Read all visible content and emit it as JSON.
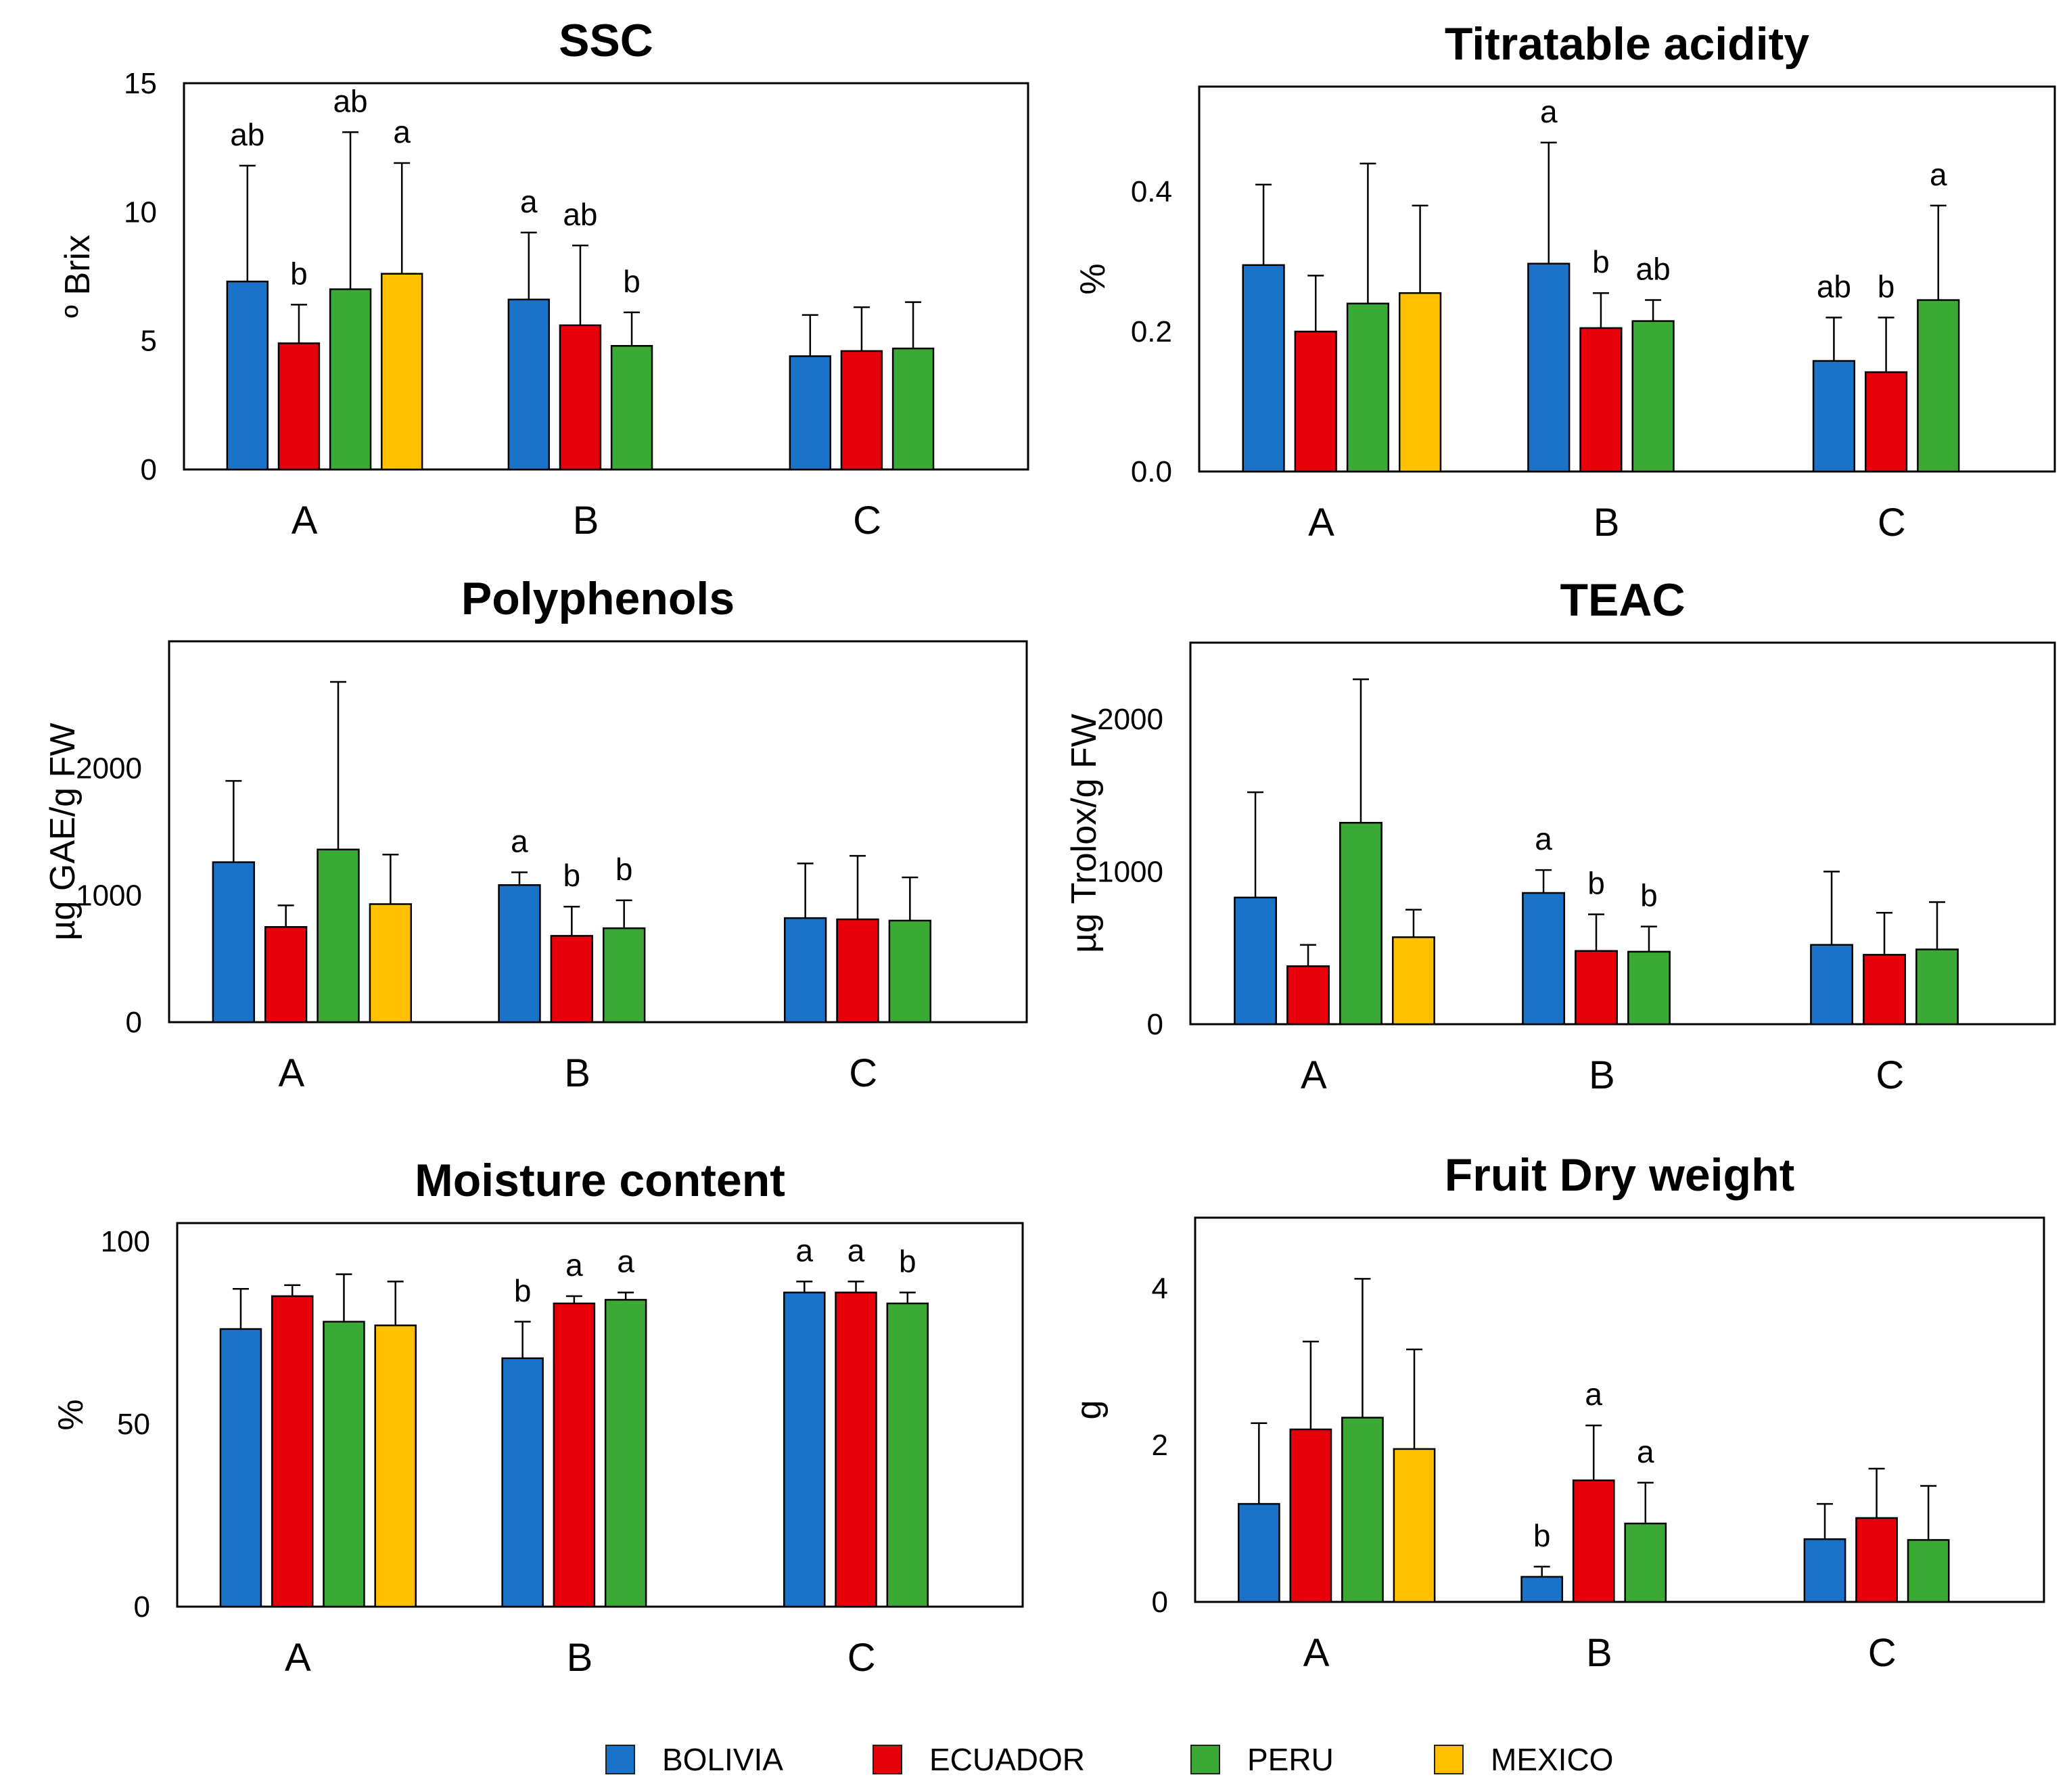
{
  "colors": {
    "BOLIVIA": "#1a73c9",
    "ECUADOR": "#e8000b",
    "PERU": "#3aaa35",
    "MEXICO": "#ffc000"
  },
  "legend": {
    "items": [
      {
        "label": "BOLIVIA",
        "key": "BOLIVIA"
      },
      {
        "label": "ECUADOR",
        "key": "ECUADOR"
      },
      {
        "label": "PERU",
        "key": "PERU"
      },
      {
        "label": "MEXICO",
        "key": "MEXICO"
      }
    ]
  },
  "chart_data": [
    {
      "type": "bar",
      "title": "SSC",
      "ylabel": "º Brix",
      "xlabel": "",
      "ylim": [
        0,
        15
      ],
      "yticks": [
        "0",
        "5",
        "10",
        "15"
      ],
      "ytick_values": [
        0,
        5,
        10,
        15
      ],
      "categories": [
        "A",
        "B",
        "C"
      ],
      "groups": [
        {
          "category": "A",
          "bars": [
            {
              "series": "BOLIVIA",
              "value": 7.3,
              "error": 11.8,
              "label": "ab"
            },
            {
              "series": "ECUADOR",
              "value": 4.9,
              "error": 6.4,
              "label": "b"
            },
            {
              "series": "PERU",
              "value": 7.0,
              "error": 13.1,
              "label": "ab"
            },
            {
              "series": "MEXICO",
              "value": 7.6,
              "error": 11.9,
              "label": "a"
            }
          ]
        },
        {
          "category": "B",
          "bars": [
            {
              "series": "BOLIVIA",
              "value": 6.6,
              "error": 9.2,
              "label": "a"
            },
            {
              "series": "ECUADOR",
              "value": 5.6,
              "error": 8.7,
              "label": "ab"
            },
            {
              "series": "PERU",
              "value": 4.8,
              "error": 6.1,
              "label": "b"
            }
          ]
        },
        {
          "category": "C",
          "bars": [
            {
              "series": "BOLIVIA",
              "value": 4.4,
              "error": 6.0,
              "label": ""
            },
            {
              "series": "ECUADOR",
              "value": 4.6,
              "error": 6.3,
              "label": ""
            },
            {
              "series": "PERU",
              "value": 4.7,
              "error": 6.5,
              "label": ""
            }
          ]
        }
      ]
    },
    {
      "type": "bar",
      "title": "Titratable acidity",
      "ylabel": "%",
      "xlabel": "",
      "ylim": [
        0,
        0.55
      ],
      "yticks": [
        "0.0",
        "0.2",
        "0.4"
      ],
      "ytick_values": [
        0,
        0.2,
        0.4
      ],
      "categories": [
        "A",
        "B",
        "C"
      ],
      "groups": [
        {
          "category": "A",
          "bars": [
            {
              "series": "BOLIVIA",
              "value": 0.295,
              "error": 0.41,
              "label": ""
            },
            {
              "series": "ECUADOR",
              "value": 0.2,
              "error": 0.28,
              "label": ""
            },
            {
              "series": "PERU",
              "value": 0.24,
              "error": 0.44,
              "label": ""
            },
            {
              "series": "MEXICO",
              "value": 0.255,
              "error": 0.38,
              "label": ""
            }
          ]
        },
        {
          "category": "B",
          "bars": [
            {
              "series": "BOLIVIA",
              "value": 0.297,
              "error": 0.47,
              "label": "a"
            },
            {
              "series": "ECUADOR",
              "value": 0.205,
              "error": 0.255,
              "label": "b"
            },
            {
              "series": "PERU",
              "value": 0.215,
              "error": 0.245,
              "label": "ab"
            }
          ]
        },
        {
          "category": "C",
          "bars": [
            {
              "series": "BOLIVIA",
              "value": 0.158,
              "error": 0.22,
              "label": "ab"
            },
            {
              "series": "ECUADOR",
              "value": 0.142,
              "error": 0.22,
              "label": "b"
            },
            {
              "series": "PERU",
              "value": 0.245,
              "error": 0.38,
              "label": "a"
            }
          ]
        }
      ]
    },
    {
      "type": "bar",
      "title": "Polyphenols",
      "ylabel": "µg GAE/g FW",
      "xlabel": "",
      "ylim": [
        0,
        3000
      ],
      "yticks": [
        "0",
        "1000",
        "2000"
      ],
      "ytick_values": [
        0,
        1000,
        2000
      ],
      "categories": [
        "A",
        "B",
        "C"
      ],
      "groups": [
        {
          "category": "A",
          "bars": [
            {
              "series": "BOLIVIA",
              "value": 1260,
              "error": 1900,
              "label": ""
            },
            {
              "series": "ECUADOR",
              "value": 750,
              "error": 920,
              "label": ""
            },
            {
              "series": "PERU",
              "value": 1360,
              "error": 2680,
              "label": ""
            },
            {
              "series": "MEXICO",
              "value": 930,
              "error": 1320,
              "label": ""
            }
          ]
        },
        {
          "category": "B",
          "bars": [
            {
              "series": "BOLIVIA",
              "value": 1080,
              "error": 1180,
              "label": "a"
            },
            {
              "series": "ECUADOR",
              "value": 680,
              "error": 910,
              "label": "b"
            },
            {
              "series": "PERU",
              "value": 740,
              "error": 960,
              "label": "b"
            }
          ]
        },
        {
          "category": "C",
          "bars": [
            {
              "series": "BOLIVIA",
              "value": 820,
              "error": 1250,
              "label": ""
            },
            {
              "series": "ECUADOR",
              "value": 810,
              "error": 1310,
              "label": ""
            },
            {
              "series": "PERU",
              "value": 800,
              "error": 1140,
              "label": ""
            }
          ]
        }
      ]
    },
    {
      "type": "bar",
      "title": "TEAC",
      "ylabel": "µg Trolox/g FW",
      "xlabel": "",
      "ylim": [
        0,
        2500
      ],
      "yticks": [
        "0",
        "1000",
        "2000"
      ],
      "ytick_values": [
        0,
        1000,
        2000
      ],
      "categories": [
        "A",
        "B",
        "C"
      ],
      "groups": [
        {
          "category": "A",
          "bars": [
            {
              "series": "BOLIVIA",
              "value": 830,
              "error": 1520,
              "label": ""
            },
            {
              "series": "ECUADOR",
              "value": 380,
              "error": 520,
              "label": ""
            },
            {
              "series": "PERU",
              "value": 1320,
              "error": 2260,
              "label": ""
            },
            {
              "series": "MEXICO",
              "value": 570,
              "error": 750,
              "label": ""
            }
          ]
        },
        {
          "category": "B",
          "bars": [
            {
              "series": "BOLIVIA",
              "value": 860,
              "error": 1010,
              "label": "a"
            },
            {
              "series": "ECUADOR",
              "value": 480,
              "error": 720,
              "label": "b"
            },
            {
              "series": "PERU",
              "value": 475,
              "error": 640,
              "label": "b"
            }
          ]
        },
        {
          "category": "C",
          "bars": [
            {
              "series": "BOLIVIA",
              "value": 520,
              "error": 1000,
              "label": ""
            },
            {
              "series": "ECUADOR",
              "value": 455,
              "error": 730,
              "label": ""
            },
            {
              "series": "PERU",
              "value": 490,
              "error": 800,
              "label": ""
            }
          ]
        }
      ]
    },
    {
      "type": "bar",
      "title": "Moisture content",
      "ylabel": "%",
      "xlabel": "",
      "ylim": [
        0,
        105
      ],
      "yticks": [
        "0",
        "50",
        "100"
      ],
      "ytick_values": [
        0,
        50,
        100
      ],
      "categories": [
        "A",
        "B",
        "C"
      ],
      "groups": [
        {
          "category": "A",
          "bars": [
            {
              "series": "BOLIVIA",
              "value": 76,
              "error": 87,
              "label": ""
            },
            {
              "series": "ECUADOR",
              "value": 85,
              "error": 88,
              "label": ""
            },
            {
              "series": "PERU",
              "value": 78,
              "error": 91,
              "label": ""
            },
            {
              "series": "MEXICO",
              "value": 77,
              "error": 89,
              "label": ""
            }
          ]
        },
        {
          "category": "B",
          "bars": [
            {
              "series": "BOLIVIA",
              "value": 68,
              "error": 78,
              "label": "b"
            },
            {
              "series": "ECUADOR",
              "value": 83,
              "error": 85,
              "label": "a"
            },
            {
              "series": "PERU",
              "value": 84,
              "error": 86,
              "label": "a"
            }
          ]
        },
        {
          "category": "C",
          "bars": [
            {
              "series": "BOLIVIA",
              "value": 86,
              "error": 89,
              "label": "a"
            },
            {
              "series": "ECUADOR",
              "value": 86,
              "error": 89,
              "label": "a"
            },
            {
              "series": "PERU",
              "value": 83,
              "error": 86,
              "label": "b"
            }
          ]
        }
      ]
    },
    {
      "type": "bar",
      "title": "Fruit Dry weight",
      "ylabel": "g",
      "xlabel": "",
      "ylim": [
        0,
        4.9
      ],
      "yticks": [
        "0",
        "2",
        "4"
      ],
      "ytick_values": [
        0,
        2,
        4
      ],
      "categories": [
        "A",
        "B",
        "C"
      ],
      "groups": [
        {
          "category": "A",
          "bars": [
            {
              "series": "BOLIVIA",
              "value": 1.25,
              "error": 2.28,
              "label": ""
            },
            {
              "series": "ECUADOR",
              "value": 2.2,
              "error": 3.32,
              "label": ""
            },
            {
              "series": "PERU",
              "value": 2.35,
              "error": 4.12,
              "label": ""
            },
            {
              "series": "MEXICO",
              "value": 1.95,
              "error": 3.22,
              "label": ""
            }
          ]
        },
        {
          "category": "B",
          "bars": [
            {
              "series": "BOLIVIA",
              "value": 0.32,
              "error": 0.45,
              "label": "b"
            },
            {
              "series": "ECUADOR",
              "value": 1.55,
              "error": 2.25,
              "label": "a"
            },
            {
              "series": "PERU",
              "value": 1.0,
              "error": 1.52,
              "label": "a"
            }
          ]
        },
        {
          "category": "C",
          "bars": [
            {
              "series": "BOLIVIA",
              "value": 0.8,
              "error": 1.25,
              "label": ""
            },
            {
              "series": "ECUADOR",
              "value": 1.07,
              "error": 1.7,
              "label": ""
            },
            {
              "series": "PERU",
              "value": 0.79,
              "error": 1.48,
              "label": ""
            }
          ]
        }
      ]
    }
  ]
}
